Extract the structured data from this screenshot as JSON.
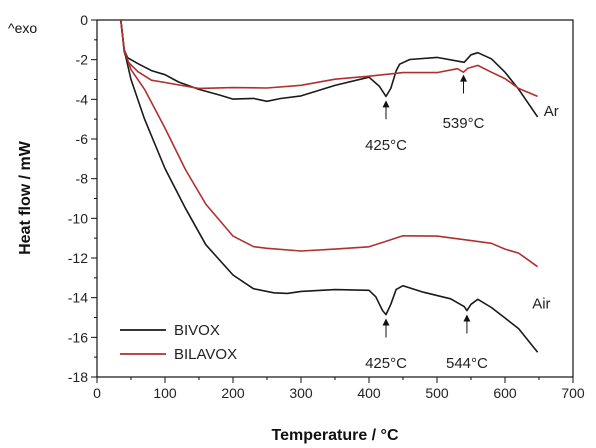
{
  "chart_data": {
    "type": "line",
    "xlabel": "Temperature / °C",
    "ylabel": "Heat flow / mW",
    "corner_label": "^exo",
    "xlim": [
      0,
      700
    ],
    "ylim": [
      -18,
      0
    ],
    "xticks": [
      0,
      100,
      200,
      300,
      400,
      500,
      600,
      700
    ],
    "yticks": [
      0,
      -2,
      -4,
      -6,
      -8,
      -10,
      -12,
      -14,
      -16,
      -18
    ],
    "grid": false,
    "legend_position": "bottom-left",
    "series": [
      {
        "name": "BIVOX",
        "color": "#1a1a1a",
        "x": [
          35,
          40,
          45,
          60,
          80,
          100,
          120,
          150,
          180,
          200,
          230,
          250,
          270,
          300,
          350,
          400,
          415,
          425,
          432,
          440,
          445,
          460,
          500,
          540,
          550,
          560,
          580,
          600,
          620,
          648
        ],
        "y": [
          0,
          -1.5,
          -1.9,
          -2.2,
          -2.5,
          -2.8,
          -3.1,
          -3.5,
          -3.8,
          -3.95,
          -4.0,
          -4.05,
          -4.0,
          -3.8,
          -3.3,
          -2.9,
          -3.3,
          -3.9,
          -3.4,
          -2.6,
          -2.2,
          -2.0,
          -1.9,
          -2.1,
          -1.8,
          -1.6,
          -2.0,
          -2.6,
          -3.5,
          -4.9
        ]
      },
      {
        "name": "BILAVOX",
        "color": "#b03030",
        "x": [
          35,
          40,
          45,
          60,
          80,
          100,
          150,
          200,
          250,
          300,
          350,
          400,
          450,
          500,
          530,
          539,
          545,
          560,
          580,
          600,
          620,
          648
        ],
        "y": [
          0,
          -1.6,
          -2.1,
          -2.6,
          -3.0,
          -3.2,
          -3.4,
          -3.45,
          -3.4,
          -3.3,
          -3.0,
          -2.8,
          -2.7,
          -2.6,
          -2.5,
          -2.6,
          -2.45,
          -2.3,
          -2.6,
          -3.0,
          -3.4,
          -3.9
        ]
      },
      {
        "name": "BIVOX",
        "color": "#1a1a1a",
        "x": [
          35,
          40,
          50,
          70,
          100,
          130,
          160,
          200,
          230,
          260,
          280,
          300,
          350,
          400,
          410,
          420,
          425,
          432,
          440,
          450,
          480,
          520,
          540,
          544,
          550,
          560,
          580,
          600,
          620,
          648
        ],
        "y": [
          0,
          -1.5,
          -3.0,
          -5.0,
          -7.5,
          -9.5,
          -11.3,
          -12.9,
          -13.5,
          -13.8,
          -13.75,
          -13.7,
          -13.6,
          -13.6,
          -14.0,
          -14.6,
          -14.9,
          -14.3,
          -13.6,
          -13.4,
          -13.7,
          -14.1,
          -14.4,
          -14.7,
          -14.3,
          -14.1,
          -14.5,
          -15.0,
          -15.6,
          -16.7
        ]
      },
      {
        "name": "BILAVOX",
        "color": "#b03030",
        "x": [
          35,
          40,
          50,
          70,
          100,
          130,
          160,
          200,
          230,
          250,
          300,
          350,
          400,
          450,
          500,
          550,
          580,
          600,
          620,
          648
        ],
        "y": [
          0,
          -1.5,
          -2.5,
          -3.5,
          -5.5,
          -7.5,
          -9.3,
          -10.9,
          -11.4,
          -11.55,
          -11.6,
          -11.6,
          -11.4,
          -10.9,
          -10.9,
          -11.1,
          -11.3,
          -11.5,
          -11.8,
          -12.4
        ]
      }
    ],
    "annotations": [
      {
        "text": "425°C",
        "x": 425,
        "y": -4.3,
        "arrow_to": -3.9,
        "label_y": -6.3
      },
      {
        "text": "539°C",
        "x": 539,
        "y": -3.0,
        "arrow_to": -2.6,
        "label_y": -5.2
      },
      {
        "text": "425°C",
        "x": 425,
        "y": -15.3,
        "arrow_to": -14.9,
        "label_y": -17.3
      },
      {
        "text": "544°C",
        "x": 544,
        "y": -15.1,
        "arrow_to": -14.7,
        "label_y": -17.3
      }
    ],
    "side_labels": [
      {
        "text": "Ar",
        "x": 657,
        "y": -4.6
      },
      {
        "text": "Air",
        "x": 640,
        "y": -14.3
      }
    ],
    "legend": [
      {
        "label": "BIVOX",
        "color": "#1a1a1a"
      },
      {
        "label": "BILAVOX",
        "color": "#b03030"
      }
    ]
  }
}
